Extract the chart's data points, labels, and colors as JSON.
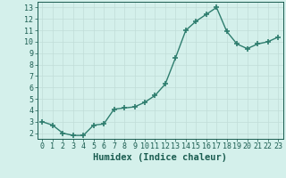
{
  "x": [
    0,
    1,
    2,
    3,
    4,
    5,
    6,
    7,
    8,
    9,
    10,
    11,
    12,
    13,
    14,
    15,
    16,
    17,
    18,
    19,
    20,
    21,
    22,
    23
  ],
  "y": [
    3.0,
    2.7,
    2.0,
    1.8,
    1.8,
    2.7,
    2.8,
    4.1,
    4.2,
    4.3,
    4.7,
    5.3,
    6.3,
    8.6,
    11.0,
    11.8,
    12.4,
    13.0,
    10.9,
    9.8,
    9.4,
    9.8,
    10.0,
    10.4
  ],
  "line_color": "#2e7d6e",
  "marker": "+",
  "marker_size": 4,
  "bg_color": "#d4f0eb",
  "grid_color": "#c0ddd8",
  "xlabel": "Humidex (Indice chaleur)",
  "xlim": [
    -0.5,
    23.5
  ],
  "ylim": [
    1.5,
    13.5
  ],
  "yticks": [
    2,
    3,
    4,
    5,
    6,
    7,
    8,
    9,
    10,
    11,
    12,
    13
  ],
  "xticks": [
    0,
    1,
    2,
    3,
    4,
    5,
    6,
    7,
    8,
    9,
    10,
    11,
    12,
    13,
    14,
    15,
    16,
    17,
    18,
    19,
    20,
    21,
    22,
    23
  ],
  "font_color": "#1a5c50",
  "tick_color": "#1a5c50",
  "xlabel_fontsize": 7.5,
  "tick_fontsize": 6.0,
  "linewidth": 1.0,
  "marker_color": "#2e7d6e"
}
